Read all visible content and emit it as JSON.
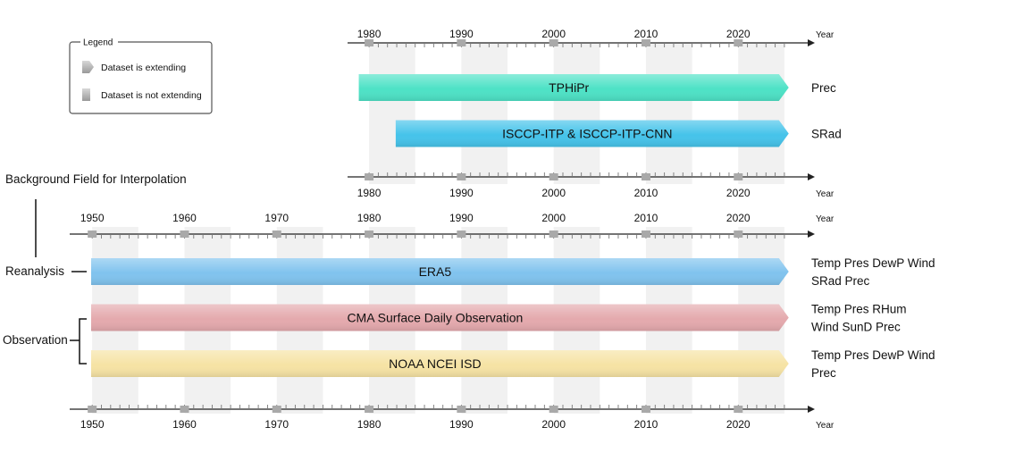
{
  "legend": {
    "title": "Legend",
    "extending": "Dataset is extending",
    "not_extending": "Dataset is not extending"
  },
  "labels": {
    "background_field": "Background Field for Interpolation",
    "reanalysis": "Reanalysis",
    "observation": "Observation"
  },
  "axes": {
    "unit": "Year",
    "top_ticks": [
      "1980",
      "1990",
      "2000",
      "2010",
      "2020"
    ],
    "bottom_ticks": [
      "1950",
      "1960",
      "1970",
      "1980",
      "1990",
      "2000",
      "2010",
      "2020"
    ]
  },
  "top_datasets": [
    {
      "name": "TPHiPr",
      "start": 1979,
      "end": 2025,
      "extending": true,
      "color": "#4de2c6",
      "variables": [
        "Prec"
      ]
    },
    {
      "name": "ISCCP-ITP & ISCCP-ITP-CNN",
      "start": 1983,
      "end": 2025,
      "extending": true,
      "color": "#45c3ea",
      "variables": [
        "SRad"
      ]
    }
  ],
  "bottom_datasets": [
    {
      "name": "ERA5",
      "start": 1950,
      "end": 2025,
      "extending": true,
      "color": "#80c3ee",
      "variables": [
        "Temp Pres DewP Wind",
        "SRad Prec"
      ]
    },
    {
      "name": "CMA Surface Daily Observation",
      "start": 1950,
      "end": 2025,
      "extending": true,
      "color": "#e4a9ad",
      "variables": [
        "Temp Pres RHum",
        "Wind SunD Prec"
      ]
    },
    {
      "name": "NOAA NCEI ISD",
      "start": 1950,
      "end": 2025,
      "extending": true,
      "color": "#f6e3a4",
      "variables": [
        "Temp Pres DewP Wind",
        "Prec"
      ]
    }
  ]
}
